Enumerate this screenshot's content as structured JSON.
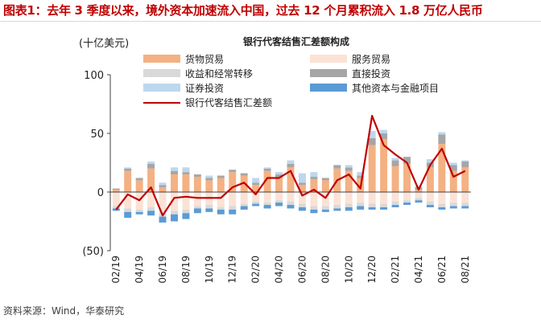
{
  "header": {
    "title": "图表1：去年 3 季度以来，境外资本加速流入中国，过去 12 个月累积流入 1.8 万亿人民币"
  },
  "footer": {
    "source": "资料来源：Wind，华泰研究"
  },
  "chart_data": {
    "type": "bar",
    "title": "银行代客结售汇差额构成",
    "unit_label": "(十亿美元)",
    "ylim": [
      -50,
      100
    ],
    "yticks": [
      {
        "v": 100,
        "label": "100"
      },
      {
        "v": 50,
        "label": "50"
      },
      {
        "v": 0,
        "label": "0"
      },
      {
        "v": -50,
        "label": "(50)"
      }
    ],
    "categories": [
      "02/19",
      "03/19",
      "04/19",
      "05/19",
      "06/19",
      "07/19",
      "08/19",
      "09/19",
      "10/19",
      "11/19",
      "12/19",
      "01/20",
      "02/20",
      "03/20",
      "04/20",
      "05/20",
      "06/20",
      "07/20",
      "08/20",
      "09/20",
      "10/20",
      "11/20",
      "12/20",
      "01/21",
      "02/21",
      "03/21",
      "04/21",
      "05/21",
      "06/21",
      "07/21",
      "08/21"
    ],
    "xtick_labels": [
      "02/19",
      "04/19",
      "06/19",
      "08/19",
      "10/19",
      "12/19",
      "02/20",
      "04/20",
      "06/20",
      "08/20",
      "10/20",
      "12/20",
      "02/21",
      "04/21",
      "06/21",
      "08/21"
    ],
    "colors": {
      "goods": "#f4b183",
      "services": "#fbe2d5",
      "income": "#d9d9d9",
      "direct": "#a6a6a6",
      "securities": "#bdd7ee",
      "other": "#5b9bd5",
      "net": "#c00000"
    },
    "legend": [
      {
        "key": "goods",
        "label": "货物贸易",
        "kind": "bar"
      },
      {
        "key": "services",
        "label": "服务贸易",
        "kind": "bar"
      },
      {
        "key": "income",
        "label": "收益和经常转移",
        "kind": "bar"
      },
      {
        "key": "direct",
        "label": "直接投资",
        "kind": "bar"
      },
      {
        "key": "securities",
        "label": "证券投资",
        "kind": "bar"
      },
      {
        "key": "other",
        "label": "其他资本与金融项目",
        "kind": "bar"
      },
      {
        "key": "net",
        "label": "银行代客结售汇差额",
        "kind": "line"
      }
    ],
    "series": [
      {
        "key": "goods",
        "values": [
          2,
          18,
          10,
          20,
          4,
          15,
          15,
          13,
          10,
          12,
          17,
          14,
          6,
          18,
          13,
          21,
          6,
          11,
          10,
          20,
          18,
          12,
          40,
          45,
          22,
          24,
          2,
          21,
          41,
          18,
          21
        ]
      },
      {
        "key": "services",
        "values": [
          -12,
          -14,
          -15,
          -13,
          -18,
          -16,
          -15,
          -12,
          -11,
          -13,
          -12,
          -10,
          -8,
          -9,
          -7,
          -8,
          -10,
          -12,
          -12,
          -11,
          -10,
          -9,
          -10,
          -10,
          -8,
          -7,
          -5,
          -8,
          -10,
          -9,
          -9
        ]
      },
      {
        "key": "income",
        "values": [
          -2,
          -3,
          -2,
          -3,
          -3,
          -3,
          -3,
          -2,
          -3,
          -2,
          -3,
          -2,
          -2,
          -2,
          -2,
          -3,
          -3,
          -3,
          -3,
          -3,
          -3,
          -3,
          -3,
          -3,
          -3,
          -2,
          -2,
          -3,
          -3,
          -3,
          -3
        ]
      },
      {
        "key": "direct",
        "values": [
          1,
          2,
          2,
          4,
          2,
          3,
          2,
          2,
          2,
          2,
          2,
          2,
          2,
          2,
          2,
          3,
          2,
          2,
          2,
          3,
          3,
          2,
          6,
          5,
          5,
          6,
          2,
          4,
          8,
          5,
          5
        ]
      },
      {
        "key": "securities",
        "values": [
          0,
          1,
          0,
          2,
          2,
          3,
          4,
          0,
          2,
          0,
          0,
          0,
          4,
          1,
          2,
          3,
          8,
          4,
          0,
          0,
          2,
          3,
          6,
          3,
          2,
          0,
          1,
          3,
          2,
          2,
          1
        ]
      },
      {
        "key": "other",
        "values": [
          -2,
          -5,
          -2,
          -4,
          -5,
          -6,
          -5,
          -4,
          -3,
          -4,
          -4,
          -3,
          -2,
          -3,
          -3,
          -3,
          -3,
          -3,
          -2,
          -2,
          -3,
          -3,
          -2,
          -2,
          -2,
          -2,
          -2,
          -2,
          -2,
          -2,
          -2
        ]
      },
      {
        "key": "net",
        "values": [
          -15,
          -2,
          -7,
          4,
          -20,
          -5,
          -4,
          -5,
          -5,
          -5,
          4,
          8,
          -2,
          12,
          12,
          18,
          -3,
          2,
          -5,
          10,
          15,
          3,
          65,
          40,
          32,
          25,
          2,
          23,
          37,
          13,
          18
        ]
      }
    ]
  }
}
